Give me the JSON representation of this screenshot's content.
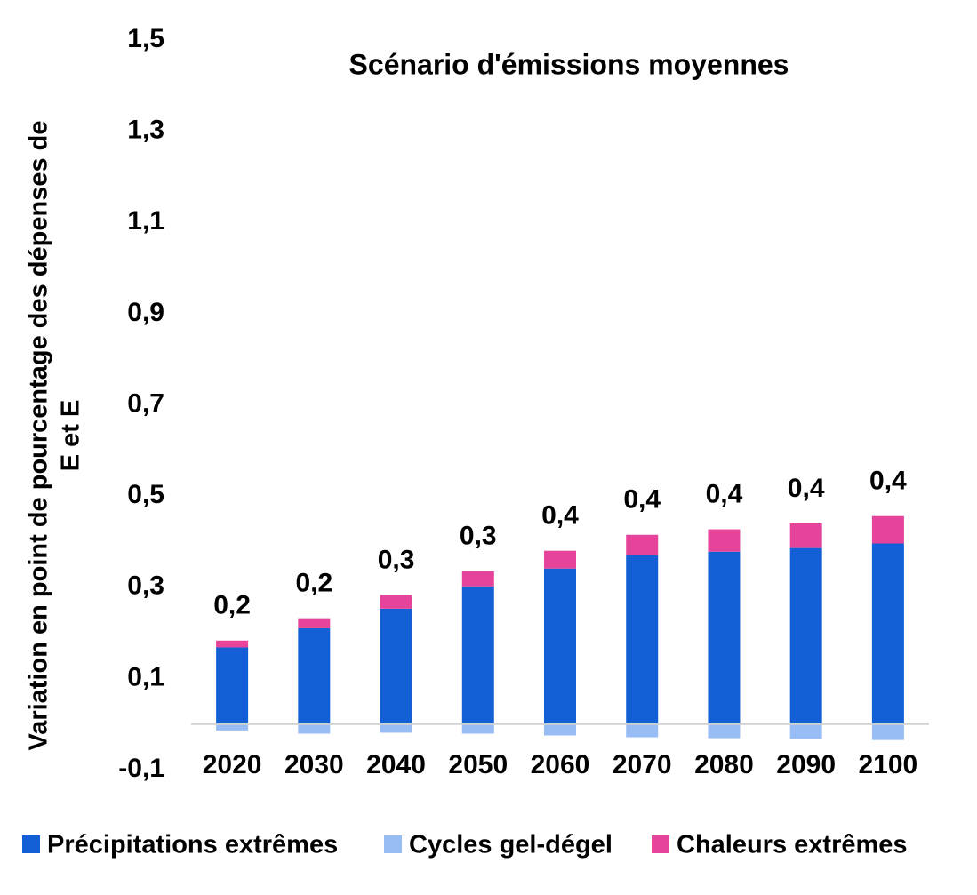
{
  "chart_data": {
    "type": "stacked_bar",
    "title": "Scénario d'émissions moyennes",
    "ylabel": [
      "Variation en point de pourcentage des dépenses de",
      "E et E"
    ],
    "categories": [
      "2020",
      "2030",
      "2040",
      "2050",
      "2060",
      "2070",
      "2080",
      "2090",
      "2100"
    ],
    "series": [
      {
        "name": "Précipitations extrêmes",
        "color": "#1360d6",
        "values": [
          0.168,
          0.21,
          0.253,
          0.302,
          0.341,
          0.37,
          0.378,
          0.386,
          0.396
        ]
      },
      {
        "name": "Cycles gel-dégel",
        "color": "#97bdf4",
        "values": [
          -0.014,
          -0.021,
          -0.019,
          -0.021,
          -0.025,
          -0.029,
          -0.031,
          -0.033,
          -0.035
        ]
      },
      {
        "name": "Chaleurs extrêmes",
        "color": "#e6439a",
        "values": [
          0.015,
          0.022,
          0.03,
          0.033,
          0.039,
          0.045,
          0.049,
          0.054,
          0.06
        ]
      }
    ],
    "totals": [
      0.169,
      0.211,
      0.264,
      0.314,
      0.355,
      0.386,
      0.396,
      0.407,
      0.421
    ],
    "total_labels": [
      "0,2",
      "0,2",
      "0,3",
      "0,3",
      "0,4",
      "0,4",
      "0,4",
      "0,4",
      "0,4"
    ],
    "ylim": [
      -0.1,
      1.5
    ],
    "yticks": [
      {
        "value": -0.1,
        "label": "-0,1"
      },
      {
        "value": 0.1,
        "label": "0,1"
      },
      {
        "value": 0.3,
        "label": "0,3"
      },
      {
        "value": 0.5,
        "label": "0,5"
      },
      {
        "value": 0.7,
        "label": "0,7"
      },
      {
        "value": 0.9,
        "label": "0,9"
      },
      {
        "value": 1.1,
        "label": "1,1"
      },
      {
        "value": 1.3,
        "label": "1,3"
      },
      {
        "value": 1.5,
        "label": "1,5"
      }
    ],
    "grid": false,
    "legend": "bottom"
  }
}
